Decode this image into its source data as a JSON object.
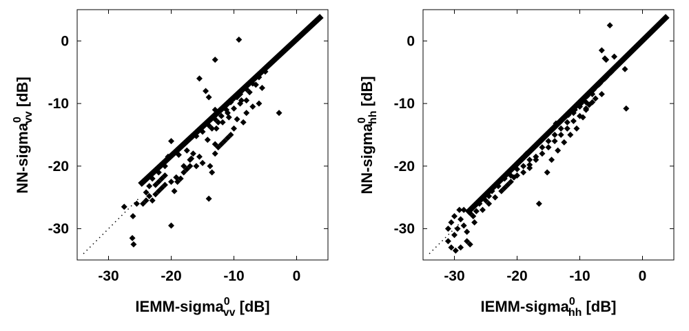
{
  "chart_data": [
    {
      "type": "scatter",
      "xlabel": {
        "prefix": "IEMM-sigma",
        "sup": "0",
        "sub": "vv",
        "unit": " [dB]"
      },
      "ylabel": {
        "prefix": "NN-sigma",
        "sup": "0",
        "sub": "vv",
        "unit": " [dB]"
      },
      "xlim": [
        -35,
        5
      ],
      "ylim": [
        -35,
        5
      ],
      "xticks": [
        -30,
        -20,
        -10,
        0
      ],
      "yticks": [
        -30,
        -20,
        -10,
        0
      ],
      "grid": false,
      "reference_line": {
        "style": "dotted",
        "from": [
          -34,
          -34
        ],
        "to": [
          -25,
          -25
        ]
      },
      "dense_band": {
        "from": [
          -25,
          -23
        ],
        "to": [
          4,
          4
        ]
      },
      "points": [
        [
          -26,
          -32.5
        ],
        [
          -26.2,
          -31.5
        ],
        [
          -26.1,
          -28
        ],
        [
          -27.5,
          -26.5
        ],
        [
          -25.5,
          -26
        ],
        [
          -24.5,
          -26
        ],
        [
          -24,
          -25.5
        ],
        [
          -23,
          -25.5
        ],
        [
          -23.5,
          -24.8
        ],
        [
          -22.5,
          -24.5
        ],
        [
          -22,
          -24
        ],
        [
          -21.5,
          -23.5
        ],
        [
          -21,
          -23
        ],
        [
          -20,
          -29.5
        ],
        [
          -19.5,
          -24
        ],
        [
          -19,
          -22.5
        ],
        [
          -18.5,
          -22
        ],
        [
          -18,
          -21
        ],
        [
          -17.5,
          -20.5
        ],
        [
          -17,
          -20
        ],
        [
          -16,
          -20
        ],
        [
          -15,
          -19.5
        ],
        [
          -15.5,
          -18.5
        ],
        [
          -16.5,
          -18
        ],
        [
          -14,
          -25.2
        ],
        [
          -13.5,
          -21
        ],
        [
          -13.8,
          -20
        ],
        [
          -13,
          -18
        ],
        [
          -12.5,
          -17
        ],
        [
          -12,
          -16.5
        ],
        [
          -11.5,
          -16
        ],
        [
          -11,
          -15.5
        ],
        [
          -10.5,
          -15
        ],
        [
          -10,
          -14
        ],
        [
          -9.5,
          -12.5
        ],
        [
          -8.5,
          -13
        ],
        [
          -8,
          -11.5
        ],
        [
          -7,
          -10.5
        ],
        [
          -6,
          -10
        ],
        [
          -5.5,
          -7.5
        ],
        [
          -2.8,
          -11.5
        ],
        [
          -9.2,
          0.2
        ],
        [
          -13,
          -3
        ],
        [
          -15.5,
          -6
        ],
        [
          -14.5,
          -8
        ],
        [
          -14,
          -9
        ],
        [
          -13,
          -11
        ],
        [
          -12,
          -12
        ],
        [
          -11,
          -11.5
        ],
        [
          -10,
          -10.8
        ],
        [
          -9,
          -10
        ],
        [
          -9.5,
          -9
        ],
        [
          -8.8,
          -9.5
        ],
        [
          -20,
          -16
        ],
        [
          -19,
          -17.5
        ],
        [
          -21,
          -20
        ],
        [
          -22,
          -21
        ],
        [
          -23,
          -22
        ],
        [
          -20.5,
          -18.5
        ],
        [
          -18.8,
          -18.2
        ],
        [
          -17.5,
          -17.5
        ],
        [
          -16,
          -15.2
        ],
        [
          -15,
          -14.5
        ],
        [
          -14,
          -13.5
        ],
        [
          -13,
          -12.5
        ],
        [
          -12,
          -11
        ],
        [
          -11,
          -10
        ],
        [
          -10,
          -9.2
        ],
        [
          -9,
          -8.5
        ],
        [
          -8,
          -7.7
        ],
        [
          -7,
          -6.8
        ],
        [
          -6,
          -5.8
        ],
        [
          -5,
          -4.9
        ],
        [
          -11.2,
          -11
        ],
        [
          -10.5,
          -9.8
        ],
        [
          -12.5,
          -13
        ],
        [
          -13.5,
          -14
        ],
        [
          -21.5,
          -22
        ],
        [
          -22.5,
          -23
        ],
        [
          -24,
          -24.2
        ],
        [
          -20,
          -22.5
        ],
        [
          -19.2,
          -21.8
        ],
        [
          -18,
          -20
        ],
        [
          -17,
          -19
        ],
        [
          -16.8,
          -18.8
        ],
        [
          -14.2,
          -15.8
        ],
        [
          -12.8,
          -14
        ],
        [
          -11.8,
          -13
        ],
        [
          -10.8,
          -12.2
        ],
        [
          -13,
          -16.5
        ],
        [
          -8,
          -9.5
        ],
        [
          -7.5,
          -8.2
        ],
        [
          -6.5,
          -7
        ],
        [
          -22,
          -22.5
        ],
        [
          -23.5,
          -23.2
        ],
        [
          -21,
          -21.5
        ]
      ]
    },
    {
      "type": "scatter",
      "xlabel": {
        "prefix": "IEMM-sigma",
        "sup": "0",
        "sub": "hh",
        "unit": " [dB]"
      },
      "ylabel": {
        "prefix": "NN-sigma",
        "sup": "0",
        "sub": "hh",
        "unit": " [dB]"
      },
      "xlim": [
        -35,
        5
      ],
      "ylim": [
        -35,
        5
      ],
      "xticks": [
        -30,
        -20,
        -10,
        0
      ],
      "yticks": [
        -30,
        -20,
        -10,
        0
      ],
      "grid": false,
      "reference_line": {
        "style": "dotted",
        "from": [
          -34,
          -34
        ],
        "to": [
          -29,
          -29
        ]
      },
      "dense_band": {
        "from": [
          -28,
          -27.5
        ],
        "to": [
          4,
          4
        ]
      },
      "points": [
        [
          -30.5,
          -33
        ],
        [
          -31,
          -32
        ],
        [
          -29.8,
          -33.5
        ],
        [
          -29,
          -33
        ],
        [
          -28,
          -32
        ],
        [
          -27.5,
          -32.5
        ],
        [
          -30,
          -31
        ],
        [
          -31,
          -30
        ],
        [
          -30.5,
          -29
        ],
        [
          -29.5,
          -30
        ],
        [
          -30,
          -28
        ],
        [
          -29,
          -28.5
        ],
        [
          -28.5,
          -29.5
        ],
        [
          -28,
          -30.5
        ],
        [
          -29.2,
          -27
        ],
        [
          -28.5,
          -27
        ],
        [
          -27.5,
          -27.5
        ],
        [
          -26.8,
          -29
        ],
        [
          -27,
          -28
        ],
        [
          -26.5,
          -27.2
        ],
        [
          -26,
          -26
        ],
        [
          -25,
          -25.5
        ],
        [
          -24.5,
          -24.8
        ],
        [
          -24,
          -24
        ],
        [
          -23,
          -23.2
        ],
        [
          -22,
          -22
        ],
        [
          -21,
          -21.5
        ],
        [
          -20,
          -20.5
        ],
        [
          -19,
          -20
        ],
        [
          -18,
          -19
        ],
        [
          -17,
          -18.5
        ],
        [
          -16,
          -17
        ],
        [
          -15,
          -16
        ],
        [
          -14,
          -15
        ],
        [
          -13,
          -14
        ],
        [
          -12,
          -13
        ],
        [
          -11,
          -11.5
        ],
        [
          -10,
          -10.5
        ],
        [
          -9,
          -9.8
        ],
        [
          -8,
          -8.5
        ],
        [
          -7,
          -7
        ],
        [
          -6,
          -6
        ],
        [
          -5,
          -5
        ],
        [
          -16.5,
          -26
        ],
        [
          -18,
          -20.3
        ],
        [
          -15.2,
          -21
        ],
        [
          -14.5,
          -19
        ],
        [
          -13.5,
          -17.5
        ],
        [
          -12.5,
          -16.2
        ],
        [
          -11.5,
          -15
        ],
        [
          -10.5,
          -14
        ],
        [
          -9.5,
          -12.2
        ],
        [
          -9,
          -11
        ],
        [
          -8.5,
          -10.2
        ],
        [
          -7.5,
          -9.2
        ],
        [
          -6.5,
          -8.5
        ],
        [
          -5.8,
          -3
        ],
        [
          -5.2,
          2.5
        ],
        [
          -4.5,
          -2.5
        ],
        [
          -6.5,
          -1.5
        ],
        [
          -6,
          -2.8
        ],
        [
          -2.8,
          -4.5
        ],
        [
          -2.6,
          -10.8
        ],
        [
          -22.5,
          -24
        ],
        [
          -21.5,
          -23
        ],
        [
          -20.5,
          -21.8
        ],
        [
          -19.5,
          -19.2
        ],
        [
          -18.5,
          -18
        ],
        [
          -17.5,
          -17.2
        ],
        [
          -16.2,
          -16
        ],
        [
          -15.5,
          -15.2
        ],
        [
          -14.8,
          -14.5
        ],
        [
          -13.8,
          -13.2
        ],
        [
          -12.8,
          -12.5
        ],
        [
          -11.8,
          -11.8
        ],
        [
          -10.8,
          -11
        ],
        [
          -9.8,
          -10
        ],
        [
          -8.8,
          -8.8
        ],
        [
          -7.8,
          -7.8
        ],
        [
          -6.8,
          -6.8
        ],
        [
          -5.8,
          -5.8
        ],
        [
          -25.5,
          -27
        ],
        [
          -24.5,
          -26
        ],
        [
          -23.5,
          -25
        ],
        [
          -22,
          -23.5
        ],
        [
          -21,
          -22.5
        ],
        [
          -20,
          -21.5
        ],
        [
          -19,
          -21
        ],
        [
          -18,
          -19.8
        ],
        [
          -17,
          -19
        ],
        [
          -16,
          -18
        ],
        [
          -15,
          -17
        ],
        [
          -14,
          -16
        ],
        [
          -13,
          -15
        ],
        [
          -12,
          -14
        ],
        [
          -11,
          -12.8
        ],
        [
          -10,
          -12
        ],
        [
          -9,
          -10.8
        ],
        [
          -8,
          -9.8
        ]
      ]
    }
  ]
}
